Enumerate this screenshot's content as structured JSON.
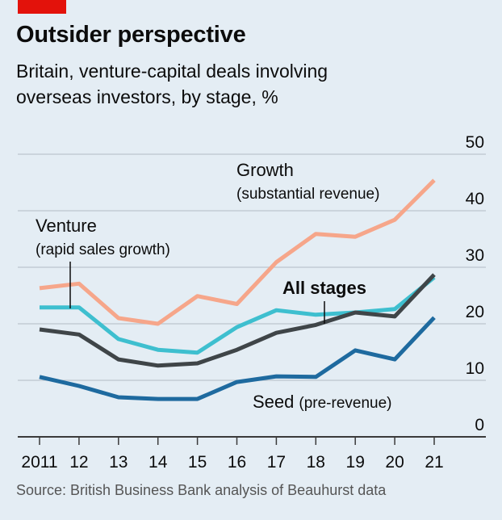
{
  "header": {
    "title": "Outsider perspective",
    "subtitle_line1": "Britain, venture-capital deals involving",
    "subtitle_line2": "overseas investors, by stage, %"
  },
  "footer": {
    "source": "Source: British Business Bank analysis of Beauhurst data"
  },
  "colors": {
    "brand_tag": "#e3120b",
    "background": "#e4edf4",
    "growth": "#f6a68a",
    "venture": "#3ebfcf",
    "all_stages": "#3f4548",
    "seed": "#1e6a9f",
    "gridline": "#bcc6cd",
    "axis": "#3a3a3a"
  },
  "chart_data": {
    "type": "line",
    "title": "Outsider perspective",
    "subtitle": "Britain, venture-capital deals involving overseas investors, by stage, %",
    "xlabel": "",
    "ylabel": "%",
    "x": [
      2011,
      2012,
      2013,
      2014,
      2015,
      2016,
      2017,
      2018,
      2019,
      2020,
      2021
    ],
    "x_tick_labels": [
      "2011",
      "12",
      "13",
      "14",
      "15",
      "16",
      "17",
      "18",
      "19",
      "20",
      "21"
    ],
    "y_ticks": [
      0,
      10,
      20,
      30,
      40,
      50
    ],
    "y_tick_labels": [
      "0",
      "10",
      "20",
      "30",
      "40",
      "50"
    ],
    "ylim": [
      0,
      50
    ],
    "y_axis_side": "right",
    "grid": true,
    "series": [
      {
        "name": "Growth",
        "note": "(substantial revenue)",
        "values": [
          26.3,
          27.1,
          21.0,
          20.0,
          24.9,
          23.5,
          30.9,
          35.9,
          35.4,
          38.4,
          45.4
        ]
      },
      {
        "name": "Venture",
        "note": "(rapid sales growth)",
        "values": [
          22.9,
          22.9,
          17.3,
          15.4,
          14.9,
          19.4,
          22.4,
          21.6,
          22.0,
          22.6,
          28.2
        ]
      },
      {
        "name": "All stages",
        "note": "",
        "values": [
          19.0,
          18.1,
          13.7,
          12.6,
          13.0,
          15.4,
          18.4,
          19.8,
          22.0,
          21.3,
          28.7
        ]
      },
      {
        "name": "Seed",
        "note": "(pre-revenue)",
        "values": [
          10.6,
          9.0,
          7.0,
          6.7,
          6.7,
          9.7,
          10.7,
          10.6,
          15.3,
          13.7,
          21.1
        ]
      }
    ],
    "annotations": {
      "growth_label": "Growth",
      "growth_note": "(substantial revenue)",
      "venture_label": "Venture",
      "venture_note": "(rapid sales growth)",
      "all_label": "All stages",
      "seed_label": "Seed",
      "seed_note": "(pre-revenue)"
    },
    "legend": "inline labels"
  }
}
